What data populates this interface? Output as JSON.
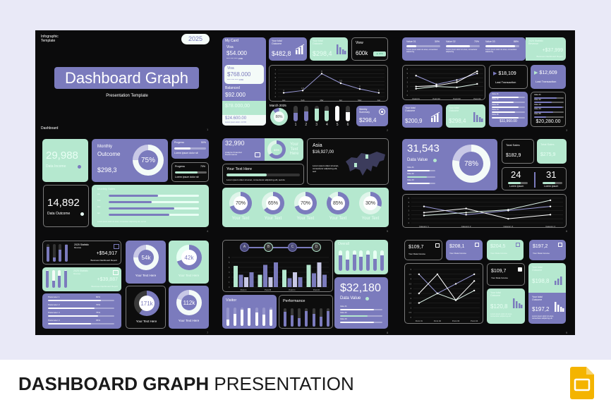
{
  "colors": {
    "purple": "#7b7bbd",
    "mint": "#b5e8cf",
    "dark": "#0d0d0d",
    "page": "#e9e9f7"
  },
  "footer": {
    "bold": "DASHBOARD GRAPH",
    "light": "PRESENTATION",
    "icon": "google-slides-icon"
  },
  "s1": {
    "label1": "Infographic",
    "label2": "Template",
    "year": "2025",
    "title": "Dashboard Graph",
    "subtitle": "Presentation Template",
    "section": "Dashboard",
    "page": "1"
  },
  "s2": {
    "card_title": "My Card",
    "visa1": "Visa",
    "visa1_amount": "$54.000",
    "card_num": "**** **** **** 1980",
    "visa2": "Visa",
    "visa2_amount": "$768.000",
    "balanced": "Balanced",
    "balanced_amount": "$92.000",
    "mint_amount": "$78.000,00",
    "white_amount": "$24.600.00",
    "white_note": "Lorem ipsum dolor • 10.5%",
    "outcome_label": "Your total Outcome",
    "outcome_value": "$482,8",
    "income_label": "Your total Outcome",
    "income_value": "$298,4",
    "view_label": "View",
    "view_value": "600k",
    "view_pill": "▲ 20%",
    "month": "March 2025",
    "donut_pct": 88,
    "donut_label": "88%",
    "bar_labels": [
      "1",
      "2",
      "3",
      "4",
      "5",
      "6"
    ],
    "bars": [
      0.55,
      0.65,
      0.8,
      0.7,
      1,
      0.6
    ],
    "weekly_label": "Weekly Summary",
    "weekly_value": "$298,4",
    "page": "2"
  },
  "s3": {
    "values": [
      {
        "label": "Value 01",
        "pct": 30,
        "pct_label": "30%"
      },
      {
        "label": "Value 02",
        "pct": 70,
        "pct_label": "70%"
      },
      {
        "label": "Value 03",
        "pct": 88,
        "pct_label": "88%"
      }
    ],
    "lorem": "Lorem ipsum dolor sit amet, consectetur adipiscing",
    "stat_title": "2025 Statistic Revenue",
    "stat_value": "+$37,999",
    "stat_note": "Business Dashboard Report",
    "t1_value": "$18,109",
    "t1_label": "Last Transaction",
    "t2_value": "$12,609",
    "t2_label": "Last Transaction",
    "list_a": [
      80,
      65,
      80,
      70,
      80
    ],
    "list_a_total": "$11,960.00",
    "list_b": [
      75,
      60,
      95,
      65,
      40
    ],
    "list_b_total": "$20,280.00",
    "list_labels": [
      "Value 01",
      "Value 02",
      "Value 03",
      "Value 04",
      "Value 05"
    ],
    "o1_label": "Your total Outcome",
    "o1_value": "$200,9",
    "o2_label": "Your total Outcome",
    "o2_value": "$298,4",
    "page": "3"
  },
  "s4": {
    "income_value": "29,988",
    "income_label": "Data Income",
    "monthly1": "Monthly",
    "monthly2": "Outcome",
    "monthly_value": "$298,3",
    "donut_pct": 75,
    "donut_label": "75%",
    "prog1_label": "Progress",
    "prog1_pct": 50,
    "prog1_pct_label": "50%",
    "prog1_note": "Lorem ipsum dolor sit",
    "prog2_label": "Progress",
    "prog2_pct": 70,
    "prog2_pct_label": "70%",
    "prog2_note": "Lorem ipsum dolor sit",
    "outcome_value": "14,892",
    "outcome_label": "Data Outcome",
    "sales_title": "Monthly Sales",
    "sales_labels": [
      "Jan",
      "Feb",
      "Mar",
      "Apr"
    ],
    "sales": [
      55,
      48,
      73,
      67
    ],
    "sales_note": "Lorem ipsum dolor sit amet, consectetur adipiscing elit, sed do",
    "page": "4"
  },
  "s5": {
    "value": "32,990",
    "value_label": "Analyze Financial Performance",
    "donut_pct": 65,
    "donut_label": "65%",
    "text_here": "Your Text Here",
    "bar_title": "Your Text Here",
    "bar_pct": 55,
    "bar_note": "Lorem ipsum dolor sit amet, consectetur adipiscing elit, sed do",
    "asia_title": "Asia",
    "asia_value": "$16,927,00",
    "asia_note": "Lorem ipsum dolor sit amet, consectetur adipiscing elit, sed",
    "donuts": [
      {
        "pct": 70,
        "label": "70%",
        "caption": "Your Text"
      },
      {
        "pct": 65,
        "label": "65%",
        "caption": "Your Text"
      },
      {
        "pct": 70,
        "label": "70%",
        "caption": "Your Text"
      },
      {
        "pct": 85,
        "label": "85%",
        "caption": "Your Text"
      },
      {
        "pct": 30,
        "label": "30%",
        "caption": "Your Text"
      }
    ],
    "page": "5"
  },
  "s6": {
    "value": "31,543",
    "value_label": "Data Value",
    "mini": [
      {
        "label": "Value 01",
        "pct": 80
      },
      {
        "label": "Value 02",
        "pct": 70
      },
      {
        "label": "Value 03",
        "pct": 80
      }
    ],
    "donut_pct": 78,
    "donut_label": "78%",
    "ts1_label": "Total Sales",
    "ts1_value": "$182,9",
    "ts2_label": "Total Sales",
    "ts2_value": "$275,9",
    "n1": "24",
    "n1_label": "Lorem ipsum",
    "n1_pct": 65,
    "n2": "31",
    "n2_label": "Lorem ipsum",
    "n2_pct": 65,
    "page": "6"
  },
  "s7": {
    "stat1_title": "2025 Statistic",
    "stat1_sub": "Revenue",
    "stat1_value": "+$54,917",
    "stat1_note": "Business Dashboard Report",
    "stat1_bars": [
      0.85,
      0.25,
      0.7,
      0.95
    ],
    "stat2_title": "2025 Statistic",
    "stat2_sub": "Revenue",
    "stat2_value": "+$39,887",
    "stat2_note": "Business Dashboard Report",
    "stat2_bars": [
      0.95,
      0.4,
      0.7,
      0.95
    ],
    "params": [
      {
        "label": "Parameter 1",
        "pct": 80,
        "pct_label": "80%"
      },
      {
        "label": "Parameter 2",
        "pct": 70,
        "pct_label": "70%"
      },
      {
        "label": "Parameter 3",
        "pct": 75,
        "pct_label": "75%"
      },
      {
        "label": "Parameter 4",
        "pct": 65,
        "pct_label": "65%"
      }
    ],
    "rings": [
      {
        "value": "54k",
        "pct": 75,
        "caption": "Your Text Here"
      },
      {
        "value": "42k",
        "pct": 70,
        "caption": "Your Text Here"
      },
      {
        "value": "171k",
        "pct": 60,
        "caption": "Your Text Here"
      },
      {
        "value": "112k",
        "pct": 80,
        "caption": "Your Text Here"
      }
    ],
    "page": "7"
  },
  "s8": {
    "steps": [
      "A",
      "B",
      "C",
      "D"
    ],
    "overall_title": "Overall",
    "overall_bars": [
      0.75,
      0.55,
      0.8,
      0.7,
      0.8,
      0.6,
      0.75
    ],
    "big_value": "$32,180",
    "big_label": "Data Value",
    "mini": [
      {
        "label": "Value 01",
        "pct": 80
      },
      {
        "label": "Value 02",
        "pct": 65
      },
      {
        "label": "Value 03",
        "pct": 80
      }
    ],
    "visitor_title": "Visitor",
    "visitor_bars": [
      0.35,
      0.65,
      0.9,
      0.95,
      0.75,
      0.6,
      0.9
    ],
    "perf_title": "Performance",
    "perf_bars": [
      0.8,
      0.6,
      0.45,
      0.85,
      0.7,
      0.55,
      0.85
    ],
    "page": "8"
  },
  "s9": {
    "cards": [
      {
        "value": "$109,7",
        "label": "Your Data Income"
      },
      {
        "value": "$208,1",
        "label": "Your Data Income"
      },
      {
        "value": "$204,5",
        "label": "Your Data Income"
      },
      {
        "value": "$197,2",
        "label": "Your Data Income"
      }
    ],
    "side1_value": "$109,7",
    "side1_label": "Your Data Income",
    "o1_label": "Your total Outcome",
    "o1_value": "$120,8",
    "o1_note": "Lorem ipsum dolor sit amet, consectetur adipiscing elit",
    "o2_label": "Your total Outcome",
    "o2_value": "$198,8",
    "o3_label": "Your total Outcome",
    "o3_value": "$197,2",
    "o3_note": "Lorem ipsum dolor sit amet, consectetur adipiscing elit",
    "page": "9"
  },
  "chart_data": [
    {
      "type": "line",
      "categories": [
        "Jan",
        "Feb",
        "Mar",
        "Apr",
        "May",
        "Jun"
      ],
      "series": [
        {
          "values": [
            1,
            1.6,
            6,
            3.5,
            2,
            1
          ]
        }
      ],
      "data_labels": [
        "1",
        "1.6",
        "6",
        "3.5",
        "2",
        "1"
      ],
      "yticks": [
        0,
        1,
        2,
        3,
        4,
        5,
        6,
        7
      ],
      "ylim": [
        0,
        7
      ],
      "grid": true
    },
    {
      "type": "line",
      "categories": [
        "Point 01",
        "Point 02",
        "Point 03",
        "Point 04"
      ],
      "series": [
        {
          "values": [
            4.5,
            2.5,
            3.5,
            5
          ]
        },
        {
          "values": [
            2,
            2.2,
            3,
            5.5
          ]
        },
        {
          "values": [
            1.5,
            2,
            1.8,
            2.6
          ]
        }
      ],
      "yticks": [
        0,
        1,
        2,
        3,
        4,
        5,
        6
      ],
      "ylim": [
        0,
        6
      ],
      "grid": true
    },
    {
      "type": "line",
      "categories": [
        "Category 1",
        "Category 2",
        "Category 3",
        "Category 4"
      ],
      "series": [
        {
          "values": [
            4,
            2,
            3,
            4
          ]
        },
        {
          "values": [
            2.5,
            3.5,
            1,
            2
          ]
        },
        {
          "values": [
            1.8,
            2.5,
            3.2,
            5.5
          ]
        }
      ],
      "yticks": [
        0,
        1,
        2,
        3,
        4,
        5,
        6
      ],
      "ylim": [
        0,
        6
      ],
      "grid": true
    },
    {
      "type": "line",
      "categories": [
        "Point 01",
        "Point 02",
        "Point 03",
        "Point 04"
      ],
      "series": [
        {
          "values": [
            4.5,
            2.5,
            3.5,
            4.5
          ]
        },
        {
          "values": [
            2.5,
            4.5,
            1.8,
            3.8
          ]
        },
        {
          "values": [
            1.5,
            2.5,
            1.8,
            2.8
          ]
        }
      ],
      "yticks": [
        0,
        0.5,
        1,
        1.5,
        2,
        2.5,
        3,
        3.5,
        4,
        4.5,
        5
      ],
      "ylim": [
        0,
        5
      ],
      "grid": true
    },
    {
      "type": "bar",
      "categories": [
        "Point A",
        "Point B",
        "Point C",
        "Point D"
      ],
      "series": [
        {
          "values": [
            4.3,
            2.5,
            3.5,
            4.5
          ]
        },
        {
          "values": [
            2.5,
            4.5,
            1.8,
            2.8
          ]
        },
        {
          "values": [
            2,
            2,
            3,
            5
          ]
        },
        {
          "values": [
            3,
            5,
            2,
            2.5
          ]
        }
      ],
      "yticks": [
        0,
        1,
        2,
        3,
        4,
        5,
        6
      ],
      "ylim": [
        0,
        6
      ],
      "grid": true
    }
  ]
}
